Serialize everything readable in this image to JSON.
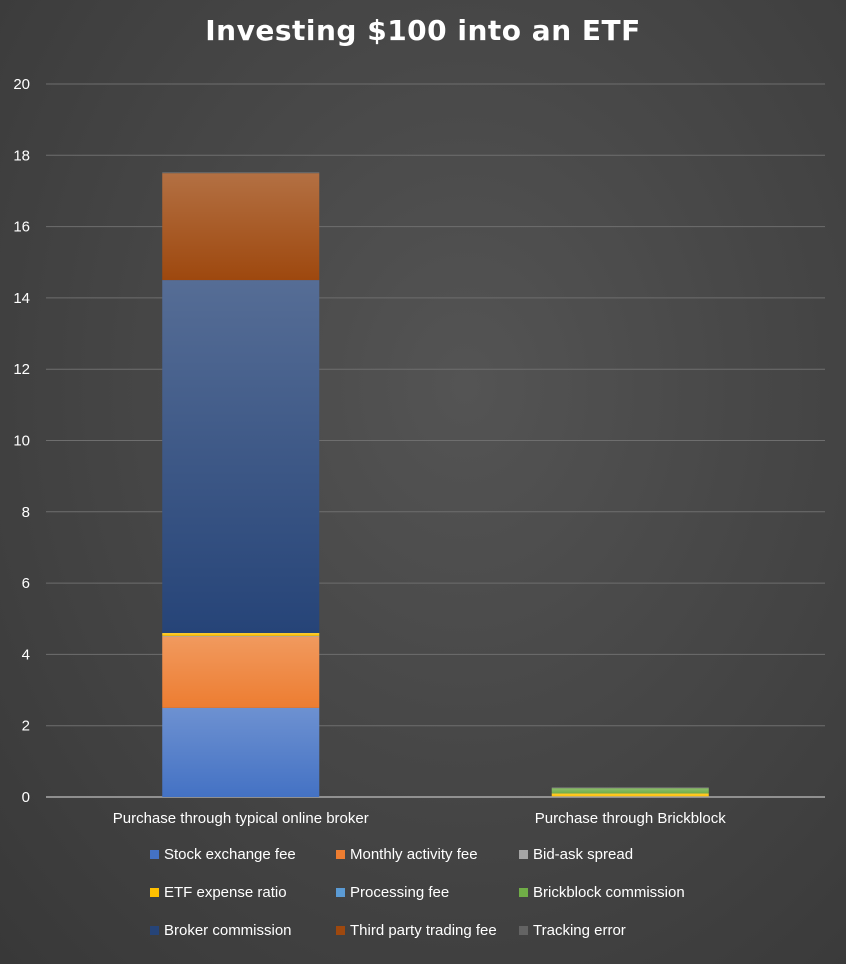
{
  "chart_data": {
    "type": "bar",
    "stacked": true,
    "title": "Investing $100 into an ETF",
    "categories": [
      "Purchase through typical online broker",
      "Purchase through Brickblock"
    ],
    "ylim": [
      0,
      20
    ],
    "yticks": [
      0,
      2,
      4,
      6,
      8,
      10,
      12,
      14,
      16,
      18,
      20
    ],
    "grid": true,
    "legend_position": "bottom",
    "series": [
      {
        "name": "Stock exchange fee",
        "color": "#4472c4",
        "values": [
          2.5,
          0
        ]
      },
      {
        "name": "Monthly activity fee",
        "color": "#ed7d31",
        "values": [
          2.0,
          0
        ]
      },
      {
        "name": "Bid-ask spread",
        "color": "#a5a5a5",
        "values": [
          0.02,
          0.02
        ]
      },
      {
        "name": "ETF expense ratio",
        "color": "#ffc000",
        "values": [
          0.08,
          0.08
        ]
      },
      {
        "name": "Processing fee",
        "color": "#5b9bd5",
        "values": [
          0,
          0
        ]
      },
      {
        "name": "Brickblock commission",
        "color": "#70ad47",
        "values": [
          0,
          0.15
        ]
      },
      {
        "name": "Broker commission",
        "color": "#264478",
        "values": [
          9.9,
          0
        ]
      },
      {
        "name": "Third party trading fee",
        "color": "#9e480e",
        "values": [
          3.0,
          0
        ]
      },
      {
        "name": "Tracking error",
        "color": "#636363",
        "values": [
          0.02,
          0.02
        ]
      }
    ]
  }
}
